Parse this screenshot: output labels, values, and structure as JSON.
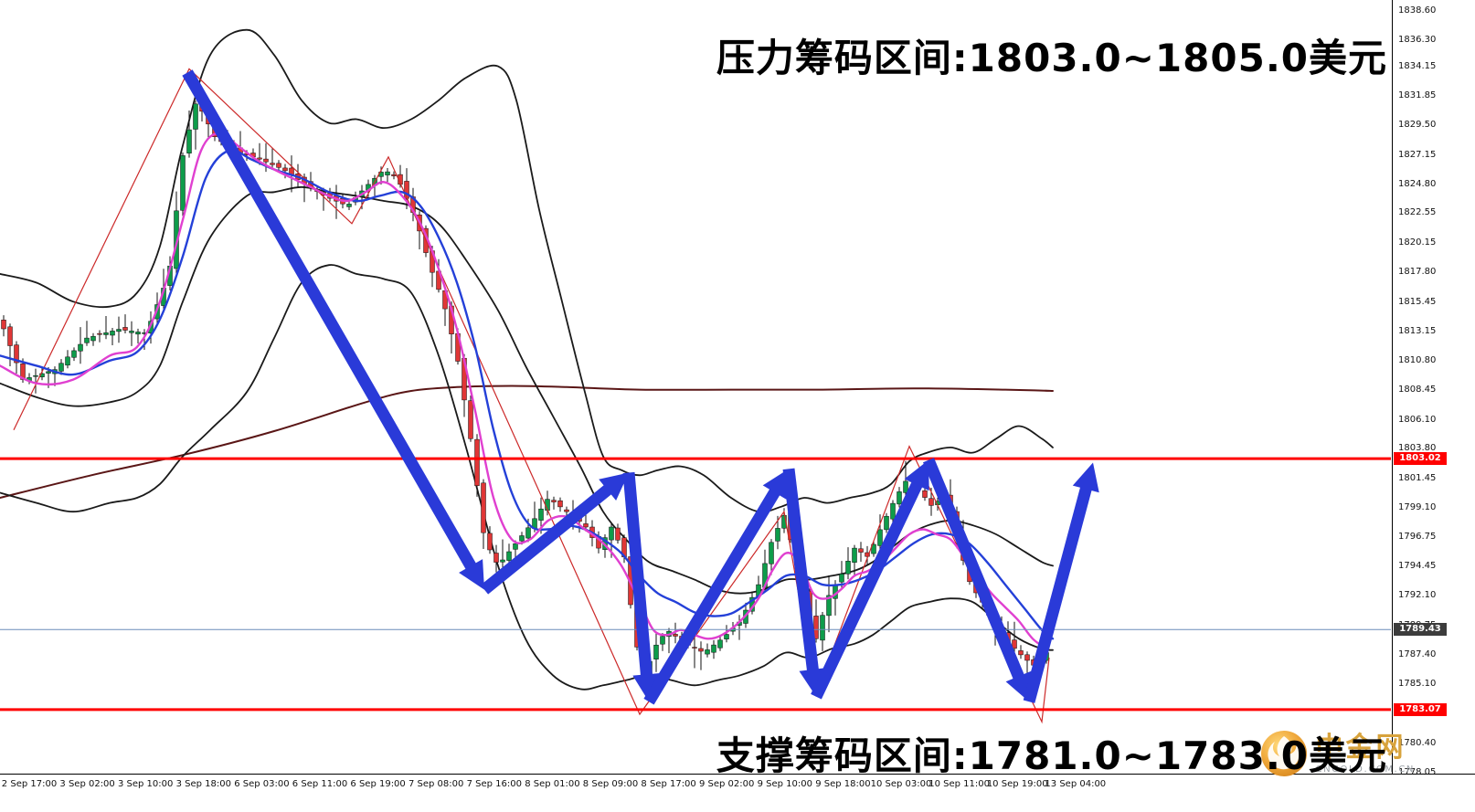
{
  "annotations": {
    "resistance": "压力筹码区间:1803.0~1805.0美元",
    "support": "支撑筹码区间:1781.0~1783.0美元"
  },
  "watermark": {
    "name": "中金网",
    "domain": "CNGOLD.COM.CN"
  },
  "key_levels": {
    "resistance": {
      "price": 1803.02,
      "label": "1803.02",
      "line_color": "#ff0000",
      "badge_color": "#ff0000"
    },
    "support": {
      "price": 1783.07,
      "label": "1783.07",
      "line_color": "#ff0000",
      "badge_color": "#ff0000"
    },
    "current": {
      "price": 1789.43,
      "label": "1789.43",
      "line_color": "#6b8cba",
      "badge_color": "#3c3c3c"
    }
  },
  "price_axis": {
    "labels": [
      "1838.60",
      "1836.30",
      "1834.15",
      "1831.85",
      "1829.50",
      "1827.15",
      "1824.80",
      "1822.55",
      "1820.15",
      "1817.80",
      "1815.45",
      "1813.15",
      "1810.80",
      "1808.45",
      "1806.10",
      "1803.80",
      "1801.45",
      "1799.10",
      "1796.75",
      "1794.45",
      "1792.10",
      "1789.75",
      "1787.40",
      "1785.10",
      "1782.75",
      "1780.40",
      "1778.05"
    ]
  },
  "time_axis": {
    "labels": [
      "2 Sep 17:00",
      "3 Sep 02:00",
      "3 Sep 10:00",
      "3 Sep 18:00",
      "6 Sep 03:00",
      "6 Sep 11:00",
      "6 Sep 19:00",
      "7 Sep 08:00",
      "7 Sep 16:00",
      "8 Sep 01:00",
      "8 Sep 09:00",
      "8 Sep 17:00",
      "9 Sep 02:00",
      "9 Sep 10:00",
      "9 Sep 18:00",
      "10 Sep 03:00",
      "10 Sep 11:00",
      "10 Sep 19:00",
      "13 Sep 04:00"
    ]
  },
  "chart_data": {
    "type": "candlestick",
    "grid": false,
    "y_axis": {
      "top": 1838.6,
      "bottom": 1778.05
    },
    "colors": {
      "candle_up": "#0e9c4a",
      "candle_down": "#e03636",
      "wick": "#111111",
      "bands": "#1a1a1a",
      "ma_blue": "#2440d8",
      "ma_magenta": "#e040d0",
      "ma_slow": "#5a1616",
      "zigzag": "#cc2929",
      "arrows": "#2a3ad8",
      "levels": "#ff0000",
      "current_line": "#6b8cba"
    },
    "close_path": [
      [
        0,
        1814.1
      ],
      [
        25,
        1809.3
      ],
      [
        60,
        1810.1
      ],
      [
        95,
        1812.6
      ],
      [
        130,
        1813.3
      ],
      [
        160,
        1813.0
      ],
      [
        185,
        1817.7
      ],
      [
        200,
        1827.1
      ],
      [
        215,
        1831.5
      ],
      [
        235,
        1828.6
      ],
      [
        255,
        1827.5
      ],
      [
        285,
        1826.8
      ],
      [
        310,
        1826.0
      ],
      [
        330,
        1825.0
      ],
      [
        355,
        1823.9
      ],
      [
        380,
        1823.1
      ],
      [
        400,
        1824.6
      ],
      [
        420,
        1826.0
      ],
      [
        435,
        1825.3
      ],
      [
        455,
        1822.1
      ],
      [
        470,
        1818.4
      ],
      [
        485,
        1815.5
      ],
      [
        500,
        1811.2
      ],
      [
        515,
        1804.6
      ],
      [
        530,
        1796.6
      ],
      [
        545,
        1794.5
      ],
      [
        560,
        1795.9
      ],
      [
        580,
        1797.7
      ],
      [
        600,
        1799.9
      ],
      [
        620,
        1798.8
      ],
      [
        640,
        1797.7
      ],
      [
        655,
        1795.9
      ],
      [
        670,
        1797.7
      ],
      [
        683,
        1795.2
      ],
      [
        695,
        1788.7
      ],
      [
        705,
        1785.4
      ],
      [
        715,
        1787.9
      ],
      [
        730,
        1789.4
      ],
      [
        750,
        1788.3
      ],
      [
        770,
        1787.6
      ],
      [
        790,
        1788.7
      ],
      [
        810,
        1790.1
      ],
      [
        830,
        1793.0
      ],
      [
        845,
        1796.6
      ],
      [
        858,
        1798.5
      ],
      [
        870,
        1795.2
      ],
      [
        882,
        1791.6
      ],
      [
        893,
        1788.7
      ],
      [
        905,
        1791.9
      ],
      [
        920,
        1793.7
      ],
      [
        935,
        1795.9
      ],
      [
        950,
        1795.2
      ],
      [
        965,
        1797.7
      ],
      [
        980,
        1799.9
      ],
      [
        995,
        1801.7
      ],
      [
        1008,
        1800.3
      ],
      [
        1020,
        1799.2
      ],
      [
        1035,
        1800.3
      ],
      [
        1050,
        1795.9
      ],
      [
        1062,
        1793.0
      ],
      [
        1075,
        1791.6
      ],
      [
        1090,
        1789.4
      ],
      [
        1105,
        1788.3
      ],
      [
        1120,
        1787.2
      ],
      [
        1133,
        1786.5
      ],
      [
        1145,
        1787.6
      ]
    ],
    "overlays": {
      "bollinger_upper": [
        [
          0,
          1817.7
        ],
        [
          40,
          1817.0
        ],
        [
          80,
          1815.5
        ],
        [
          120,
          1815.1
        ],
        [
          150,
          1816.2
        ],
        [
          175,
          1819.9
        ],
        [
          200,
          1827.9
        ],
        [
          230,
          1835.1
        ],
        [
          270,
          1837.1
        ],
        [
          300,
          1835.1
        ],
        [
          330,
          1831.5
        ],
        [
          360,
          1829.7
        ],
        [
          390,
          1830.0
        ],
        [
          420,
          1829.3
        ],
        [
          450,
          1830.0
        ],
        [
          480,
          1831.5
        ],
        [
          510,
          1833.3
        ],
        [
          545,
          1834.2
        ],
        [
          565,
          1831.5
        ],
        [
          590,
          1822.8
        ],
        [
          615,
          1815.5
        ],
        [
          640,
          1808.3
        ],
        [
          660,
          1803.2
        ],
        [
          680,
          1802.1
        ],
        [
          700,
          1801.7
        ],
        [
          720,
          1802.1
        ],
        [
          745,
          1802.4
        ],
        [
          770,
          1801.7
        ],
        [
          800,
          1799.9
        ],
        [
          830,
          1798.8
        ],
        [
          855,
          1799.2
        ],
        [
          880,
          1799.9
        ],
        [
          905,
          1799.5
        ],
        [
          930,
          1799.9
        ],
        [
          955,
          1800.3
        ],
        [
          975,
          1801.0
        ],
        [
          995,
          1802.8
        ],
        [
          1015,
          1803.5
        ],
        [
          1040,
          1803.9
        ],
        [
          1065,
          1803.5
        ],
        [
          1090,
          1804.6
        ],
        [
          1115,
          1805.6
        ],
        [
          1140,
          1804.6
        ],
        [
          1152,
          1803.9
        ]
      ],
      "bollinger_middle": [
        [
          0,
          1809.0
        ],
        [
          40,
          1807.9
        ],
        [
          80,
          1807.2
        ],
        [
          120,
          1807.5
        ],
        [
          150,
          1808.3
        ],
        [
          175,
          1810.4
        ],
        [
          200,
          1815.5
        ],
        [
          230,
          1820.6
        ],
        [
          270,
          1823.9
        ],
        [
          300,
          1824.2
        ],
        [
          330,
          1824.6
        ],
        [
          360,
          1824.2
        ],
        [
          390,
          1823.9
        ],
        [
          420,
          1823.5
        ],
        [
          450,
          1823.1
        ],
        [
          480,
          1821.7
        ],
        [
          510,
          1818.8
        ],
        [
          545,
          1814.8
        ],
        [
          575,
          1810.4
        ],
        [
          605,
          1806.4
        ],
        [
          635,
          1802.4
        ],
        [
          660,
          1798.8
        ],
        [
          685,
          1796.6
        ],
        [
          710,
          1794.8
        ],
        [
          735,
          1794.1
        ],
        [
          760,
          1793.4
        ],
        [
          785,
          1792.6
        ],
        [
          810,
          1792.3
        ],
        [
          835,
          1792.6
        ],
        [
          860,
          1793.4
        ],
        [
          885,
          1793.4
        ],
        [
          910,
          1793.7
        ],
        [
          935,
          1794.1
        ],
        [
          955,
          1794.8
        ],
        [
          975,
          1795.9
        ],
        [
          995,
          1797.0
        ],
        [
          1015,
          1797.7
        ],
        [
          1040,
          1798.1
        ],
        [
          1065,
          1797.7
        ],
        [
          1090,
          1797.0
        ],
        [
          1115,
          1795.9
        ],
        [
          1140,
          1794.8
        ],
        [
          1152,
          1794.5
        ]
      ],
      "bollinger_lower": [
        [
          0,
          1800.3
        ],
        [
          40,
          1799.5
        ],
        [
          80,
          1798.8
        ],
        [
          120,
          1799.5
        ],
        [
          150,
          1799.9
        ],
        [
          175,
          1801.0
        ],
        [
          200,
          1803.2
        ],
        [
          230,
          1805.3
        ],
        [
          270,
          1808.3
        ],
        [
          300,
          1812.6
        ],
        [
          330,
          1817.0
        ],
        [
          360,
          1818.4
        ],
        [
          390,
          1817.7
        ],
        [
          420,
          1817.3
        ],
        [
          450,
          1816.2
        ],
        [
          480,
          1811.2
        ],
        [
          510,
          1803.9
        ],
        [
          545,
          1794.5
        ],
        [
          575,
          1788.7
        ],
        [
          605,
          1785.8
        ],
        [
          635,
          1784.7
        ],
        [
          660,
          1785.0
        ],
        [
          685,
          1785.4
        ],
        [
          710,
          1785.8
        ],
        [
          735,
          1785.4
        ],
        [
          760,
          1785.0
        ],
        [
          785,
          1785.4
        ],
        [
          810,
          1785.8
        ],
        [
          835,
          1786.5
        ],
        [
          860,
          1787.6
        ],
        [
          885,
          1787.2
        ],
        [
          910,
          1787.9
        ],
        [
          935,
          1788.3
        ],
        [
          955,
          1789.0
        ],
        [
          975,
          1790.1
        ],
        [
          995,
          1791.2
        ],
        [
          1015,
          1791.6
        ],
        [
          1040,
          1791.9
        ],
        [
          1065,
          1791.6
        ],
        [
          1090,
          1790.1
        ],
        [
          1115,
          1788.7
        ],
        [
          1140,
          1787.9
        ],
        [
          1152,
          1787.8
        ]
      ],
      "ma_blue": [
        [
          0,
          1811.2
        ],
        [
          40,
          1810.4
        ],
        [
          80,
          1809.7
        ],
        [
          120,
          1810.8
        ],
        [
          150,
          1811.5
        ],
        [
          175,
          1814.1
        ],
        [
          200,
          1819.1
        ],
        [
          225,
          1825.3
        ],
        [
          250,
          1827.5
        ],
        [
          275,
          1826.8
        ],
        [
          300,
          1826.0
        ],
        [
          330,
          1825.3
        ],
        [
          360,
          1824.2
        ],
        [
          390,
          1823.5
        ],
        [
          415,
          1823.9
        ],
        [
          440,
          1824.2
        ],
        [
          460,
          1823.1
        ],
        [
          480,
          1820.6
        ],
        [
          500,
          1817.0
        ],
        [
          520,
          1811.9
        ],
        [
          540,
          1805.3
        ],
        [
          560,
          1800.3
        ],
        [
          580,
          1797.7
        ],
        [
          600,
          1797.4
        ],
        [
          620,
          1797.7
        ],
        [
          640,
          1797.4
        ],
        [
          660,
          1796.6
        ],
        [
          680,
          1795.5
        ],
        [
          700,
          1793.7
        ],
        [
          720,
          1792.3
        ],
        [
          740,
          1791.6
        ],
        [
          760,
          1790.8
        ],
        [
          780,
          1790.5
        ],
        [
          800,
          1790.7
        ],
        [
          820,
          1791.6
        ],
        [
          840,
          1792.6
        ],
        [
          860,
          1793.7
        ],
        [
          880,
          1793.7
        ],
        [
          900,
          1793.0
        ],
        [
          920,
          1793.0
        ],
        [
          940,
          1793.4
        ],
        [
          960,
          1794.1
        ],
        [
          980,
          1795.2
        ],
        [
          1000,
          1796.3
        ],
        [
          1020,
          1797.0
        ],
        [
          1040,
          1797.0
        ],
        [
          1060,
          1796.3
        ],
        [
          1080,
          1794.8
        ],
        [
          1100,
          1793.0
        ],
        [
          1120,
          1791.2
        ],
        [
          1140,
          1789.4
        ],
        [
          1152,
          1788.7
        ]
      ],
      "ma_magenta": [
        [
          0,
          1810.4
        ],
        [
          40,
          1809.0
        ],
        [
          80,
          1809.3
        ],
        [
          120,
          1811.2
        ],
        [
          150,
          1811.9
        ],
        [
          175,
          1815.5
        ],
        [
          200,
          1822.0
        ],
        [
          220,
          1827.5
        ],
        [
          240,
          1828.9
        ],
        [
          260,
          1827.9
        ],
        [
          280,
          1826.8
        ],
        [
          300,
          1826.0
        ],
        [
          320,
          1825.3
        ],
        [
          340,
          1824.6
        ],
        [
          360,
          1823.9
        ],
        [
          380,
          1823.5
        ],
        [
          400,
          1824.2
        ],
        [
          420,
          1825.0
        ],
        [
          440,
          1823.9
        ],
        [
          460,
          1821.7
        ],
        [
          480,
          1818.1
        ],
        [
          500,
          1813.3
        ],
        [
          520,
          1806.8
        ],
        [
          540,
          1799.9
        ],
        [
          560,
          1796.6
        ],
        [
          580,
          1796.6
        ],
        [
          600,
          1798.1
        ],
        [
          620,
          1798.4
        ],
        [
          640,
          1797.4
        ],
        [
          660,
          1796.3
        ],
        [
          680,
          1794.5
        ],
        [
          700,
          1791.6
        ],
        [
          715,
          1789.4
        ],
        [
          730,
          1789.0
        ],
        [
          745,
          1789.4
        ],
        [
          760,
          1789.0
        ],
        [
          775,
          1788.7
        ],
        [
          790,
          1789.0
        ],
        [
          810,
          1790.1
        ],
        [
          830,
          1791.9
        ],
        [
          845,
          1794.1
        ],
        [
          860,
          1795.5
        ],
        [
          875,
          1794.8
        ],
        [
          890,
          1792.3
        ],
        [
          905,
          1791.9
        ],
        [
          920,
          1792.6
        ],
        [
          935,
          1793.7
        ],
        [
          950,
          1794.1
        ],
        [
          965,
          1794.8
        ],
        [
          980,
          1795.9
        ],
        [
          995,
          1797.0
        ],
        [
          1010,
          1797.4
        ],
        [
          1025,
          1797.0
        ],
        [
          1040,
          1796.6
        ],
        [
          1055,
          1795.2
        ],
        [
          1070,
          1793.7
        ],
        [
          1085,
          1792.3
        ],
        [
          1100,
          1791.2
        ],
        [
          1115,
          1790.1
        ],
        [
          1130,
          1788.7
        ],
        [
          1145,
          1787.9
        ]
      ],
      "ma_slow_maroon": [
        [
          0,
          1799.9
        ],
        [
          100,
          1801.7
        ],
        [
          200,
          1803.3
        ],
        [
          300,
          1805.2
        ],
        [
          400,
          1807.5
        ],
        [
          450,
          1808.4
        ],
        [
          500,
          1808.7
        ],
        [
          560,
          1808.8
        ],
        [
          620,
          1808.7
        ],
        [
          700,
          1808.5
        ],
        [
          800,
          1808.5
        ],
        [
          900,
          1808.5
        ],
        [
          1000,
          1808.6
        ],
        [
          1100,
          1808.5
        ],
        [
          1152,
          1808.4
        ]
      ],
      "zigzag_red": [
        [
          15,
          1805.3
        ],
        [
          207,
          1834.0
        ],
        [
          385,
          1821.7
        ],
        [
          425,
          1827.0
        ],
        [
          700,
          1782.7
        ],
        [
          858,
          1798.8
        ],
        [
          893,
          1784.3
        ],
        [
          995,
          1804.0
        ],
        [
          1140,
          1782.1
        ],
        [
          1148,
          1787.2
        ]
      ]
    },
    "trend_arrows": [
      [
        205,
        1833.7
      ],
      [
        530,
        1792.6
      ],
      [
        688,
        1801.9
      ],
      [
        710,
        1783.7
      ],
      [
        863,
        1802.2
      ],
      [
        893,
        1784.1
      ],
      [
        1016,
        1802.9
      ],
      [
        1126,
        1783.7
      ],
      [
        1196,
        1802.7
      ]
    ]
  }
}
